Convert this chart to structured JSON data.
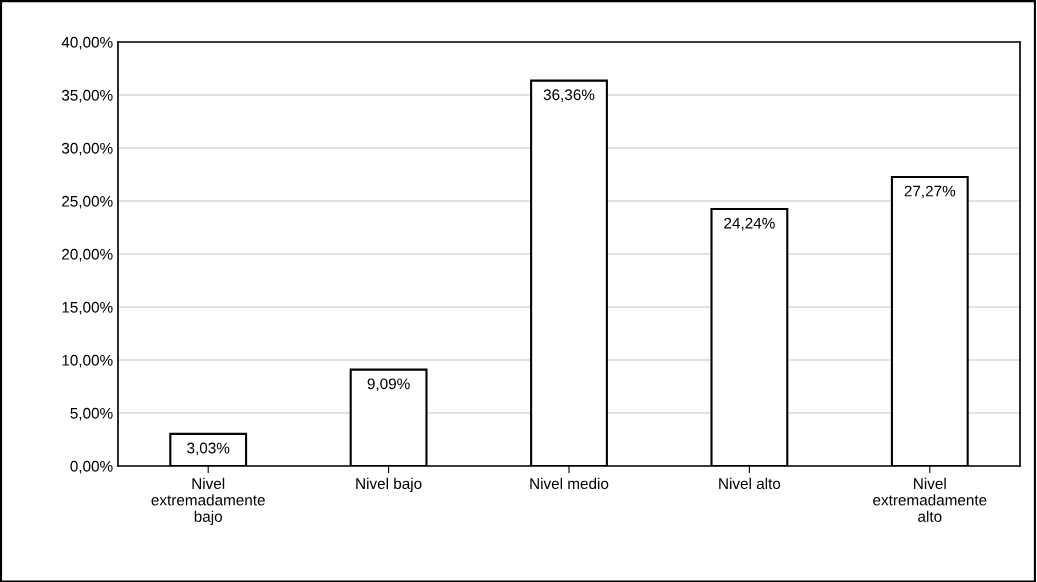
{
  "chart_data": {
    "type": "bar",
    "categories": [
      "Nivel extremadamente bajo",
      "Nivel bajo",
      "Nivel medio",
      "Nivel alto",
      "Nivel extremadamente alto"
    ],
    "values": [
      3.03,
      9.09,
      36.36,
      24.24,
      27.27
    ],
    "value_labels": [
      "3,03%",
      "9,09%",
      "36,36%",
      "24,24%",
      "27,27%"
    ],
    "color": "#ffffff",
    "ylim": [
      0,
      40
    ],
    "yticks": [
      {
        "value": 0,
        "label": "0,00%"
      },
      {
        "value": 5,
        "label": "5,00%"
      },
      {
        "value": 10,
        "label": "10,00%"
      },
      {
        "value": 15,
        "label": "15,00%"
      },
      {
        "value": 20,
        "label": "20,00%"
      },
      {
        "value": 25,
        "label": "25,00%"
      },
      {
        "value": 30,
        "label": "30,00%"
      },
      {
        "value": 35,
        "label": "35,00%"
      },
      {
        "value": 40,
        "label": "40,00%"
      }
    ],
    "grid": "y"
  }
}
